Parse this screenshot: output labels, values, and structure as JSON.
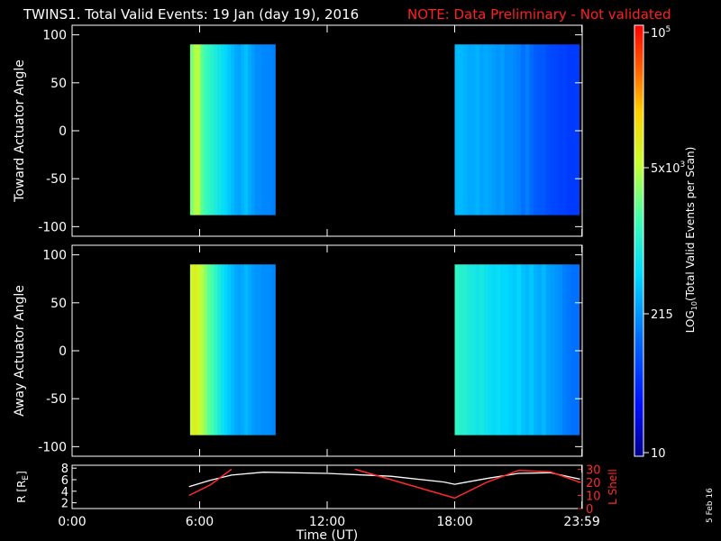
{
  "header": {
    "title": "TWINS1. Total Valid Events: 19 Jan (day  19), 2016",
    "note": "NOTE: Data Preliminary - Not validated"
  },
  "side_stamp": "5 Feb 16",
  "colors": {
    "background": "#000000",
    "axes": "#ffffff",
    "note": "#ff2020",
    "lshell_line": "#ff2a2a",
    "radius_line": "#ffffff"
  },
  "chart_data": [
    {
      "type": "heatmap",
      "panel": "top",
      "ylabel": "Toward Actuator Angle",
      "ylim": [
        -110,
        110
      ],
      "yticks": [
        "100",
        "50",
        "0",
        "-50",
        "-100"
      ],
      "xlim_hours": [
        0,
        24
      ],
      "data_y_range": [
        -88,
        90
      ],
      "blocks": [
        {
          "t_start": 5.55,
          "t_end": 9.55,
          "profile": [
            0.6,
            0.66,
            0.66,
            0.58,
            0.54,
            0.52,
            0.5,
            0.48,
            0.46,
            0.44,
            0.42,
            0.4,
            0.38,
            0.36,
            0.35,
            0.37,
            0.39,
            0.36,
            0.34,
            0.32,
            0.32,
            0.31,
            0.31,
            0.31,
            0.3
          ]
        },
        {
          "t_start": 18.0,
          "t_end": 23.85,
          "profile": [
            0.38,
            0.38,
            0.37,
            0.36,
            0.36,
            0.37,
            0.35,
            0.36,
            0.35,
            0.34,
            0.33,
            0.34,
            0.32,
            0.32,
            0.31,
            0.3,
            0.28,
            0.3,
            0.27,
            0.25,
            0.24,
            0.24,
            0.22,
            0.21,
            0.21,
            0.2,
            0.2,
            0.19,
            0.19,
            0.19
          ]
        }
      ]
    },
    {
      "type": "heatmap",
      "panel": "middle",
      "ylabel": "Away Actuator Angle",
      "ylim": [
        -110,
        110
      ],
      "yticks": [
        "100",
        "50",
        "0",
        "-50",
        "-100"
      ],
      "xlim_hours": [
        0,
        24
      ],
      "data_y_range": [
        -88,
        90
      ],
      "blocks": [
        {
          "t_start": 5.55,
          "t_end": 9.55,
          "profile": [
            0.7,
            0.72,
            0.7,
            0.66,
            0.62,
            0.58,
            0.55,
            0.52,
            0.48,
            0.45,
            0.42,
            0.4,
            0.38,
            0.36,
            0.35,
            0.36,
            0.38,
            0.36,
            0.34,
            0.33,
            0.33,
            0.32,
            0.32,
            0.32,
            0.31
          ]
        },
        {
          "t_start": 18.0,
          "t_end": 23.85,
          "profile": [
            0.52,
            0.5,
            0.5,
            0.48,
            0.47,
            0.46,
            0.47,
            0.45,
            0.44,
            0.43,
            0.44,
            0.42,
            0.42,
            0.41,
            0.4,
            0.42,
            0.39,
            0.38,
            0.4,
            0.37,
            0.36,
            0.38,
            0.35,
            0.34,
            0.33,
            0.32,
            0.3,
            0.29,
            0.28,
            0.28
          ]
        }
      ]
    },
    {
      "type": "line",
      "panel": "bottom",
      "ylabel": "R [R",
      "ylabel_sub": "E",
      "ylabel_close": "]",
      "ylim": [
        1,
        8.5
      ],
      "yticks": [
        "8",
        "6",
        "4",
        "2"
      ],
      "right_ylabel": "L Shell",
      "right_ylim": [
        0,
        33
      ],
      "right_yticks": [
        "30",
        "20",
        "10",
        "0"
      ],
      "x_hours": [
        5.5,
        6.5,
        7.5,
        9.0,
        12.0,
        15.0,
        17.5,
        18.0,
        19.5,
        21.0,
        22.5,
        23.9
      ],
      "series": [
        {
          "axis": "left",
          "values": [
            4.8,
            5.9,
            6.8,
            7.3,
            7.1,
            6.6,
            5.6,
            5.2,
            6.2,
            7.1,
            7.2,
            6.1
          ]
        },
        {
          "axis": "right",
          "values": [
            10.0,
            18.0,
            30.0,
            null,
            null,
            null,
            null,
            8.0,
            20.0,
            29.0,
            28.0,
            20.0
          ]
        }
      ],
      "right_series_extra": [
        {
          "x": 13.3,
          "y": 30.0
        },
        {
          "x": 18.0,
          "y": 8.0
        }
      ]
    }
  ],
  "xaxis": {
    "ticks": [
      "0:00",
      "6:00",
      "12:00",
      "18:00",
      "23:59"
    ],
    "label": "Time (UT)"
  },
  "colorbar": {
    "label_main": "LOG",
    "label_sub": "10",
    "label_rest": "(Total Valid Events per Scan)",
    "ticks": [
      {
        "text": "10",
        "sup": "5"
      },
      {
        "text": "5x10",
        "sup": "3"
      },
      {
        "text": "215",
        "sup": ""
      },
      {
        "text": "10",
        "sup": ""
      }
    ]
  }
}
